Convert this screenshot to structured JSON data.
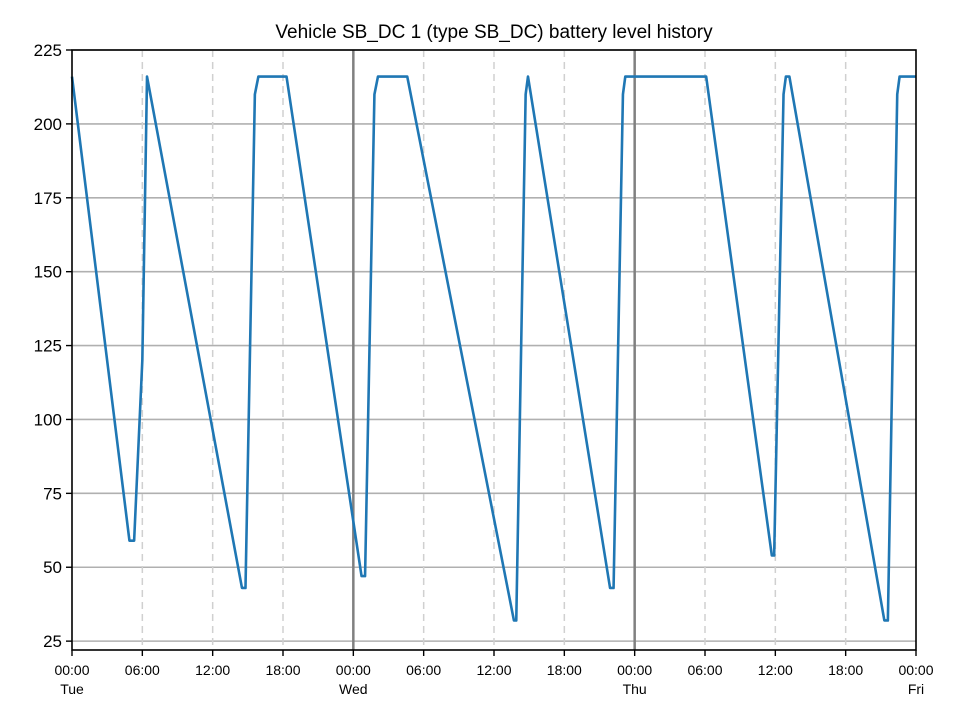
{
  "chart_data": {
    "type": "line",
    "title": "Vehicle SB_DC 1 (type SB_DC) battery level history",
    "xlabel": "",
    "ylabel": "",
    "x_unit": "hours from Tue 00:00",
    "xlim": [
      0,
      72
    ],
    "ylim": [
      22,
      225
    ],
    "y_ticks": [
      25,
      50,
      75,
      100,
      125,
      150,
      175,
      200,
      225
    ],
    "x_ticks": [
      {
        "x": 0,
        "time": "00:00",
        "day": "Tue"
      },
      {
        "x": 6,
        "time": "06:00",
        "day": ""
      },
      {
        "x": 12,
        "time": "12:00",
        "day": ""
      },
      {
        "x": 18,
        "time": "18:00",
        "day": ""
      },
      {
        "x": 24,
        "time": "00:00",
        "day": "Wed"
      },
      {
        "x": 30,
        "time": "06:00",
        "day": ""
      },
      {
        "x": 36,
        "time": "12:00",
        "day": ""
      },
      {
        "x": 42,
        "time": "18:00",
        "day": ""
      },
      {
        "x": 48,
        "time": "00:00",
        "day": "Thu"
      },
      {
        "x": 54,
        "time": "06:00",
        "day": ""
      },
      {
        "x": 60,
        "time": "12:00",
        "day": ""
      },
      {
        "x": 66,
        "time": "18:00",
        "day": ""
      },
      {
        "x": 72,
        "time": "00:00",
        "day": "Fri"
      }
    ],
    "grid": {
      "horizontal": true,
      "vertical_6h_dashed": true,
      "vertical_day_solid": true
    },
    "line_color": "#1f77b4",
    "series": [
      {
        "name": "",
        "points": [
          [
            0.0,
            216
          ],
          [
            4.9,
            59
          ],
          [
            5.3,
            59
          ],
          [
            6.0,
            120
          ],
          [
            6.4,
            216
          ],
          [
            14.5,
            43
          ],
          [
            14.8,
            43
          ],
          [
            15.6,
            210
          ],
          [
            15.9,
            216
          ],
          [
            18.3,
            216
          ],
          [
            24.7,
            47
          ],
          [
            25.0,
            47
          ],
          [
            25.8,
            210
          ],
          [
            26.1,
            216
          ],
          [
            28.6,
            216
          ],
          [
            37.7,
            32
          ],
          [
            37.9,
            32
          ],
          [
            38.7,
            210
          ],
          [
            38.9,
            216
          ],
          [
            45.9,
            43
          ],
          [
            46.2,
            43
          ],
          [
            47.0,
            210
          ],
          [
            47.2,
            216
          ],
          [
            54.1,
            216
          ],
          [
            59.7,
            54
          ],
          [
            59.9,
            54
          ],
          [
            60.7,
            210
          ],
          [
            60.9,
            216
          ],
          [
            61.2,
            216
          ],
          [
            69.3,
            32
          ],
          [
            69.6,
            32
          ],
          [
            70.4,
            210
          ],
          [
            70.6,
            216
          ],
          [
            72.0,
            216
          ]
        ]
      }
    ]
  }
}
